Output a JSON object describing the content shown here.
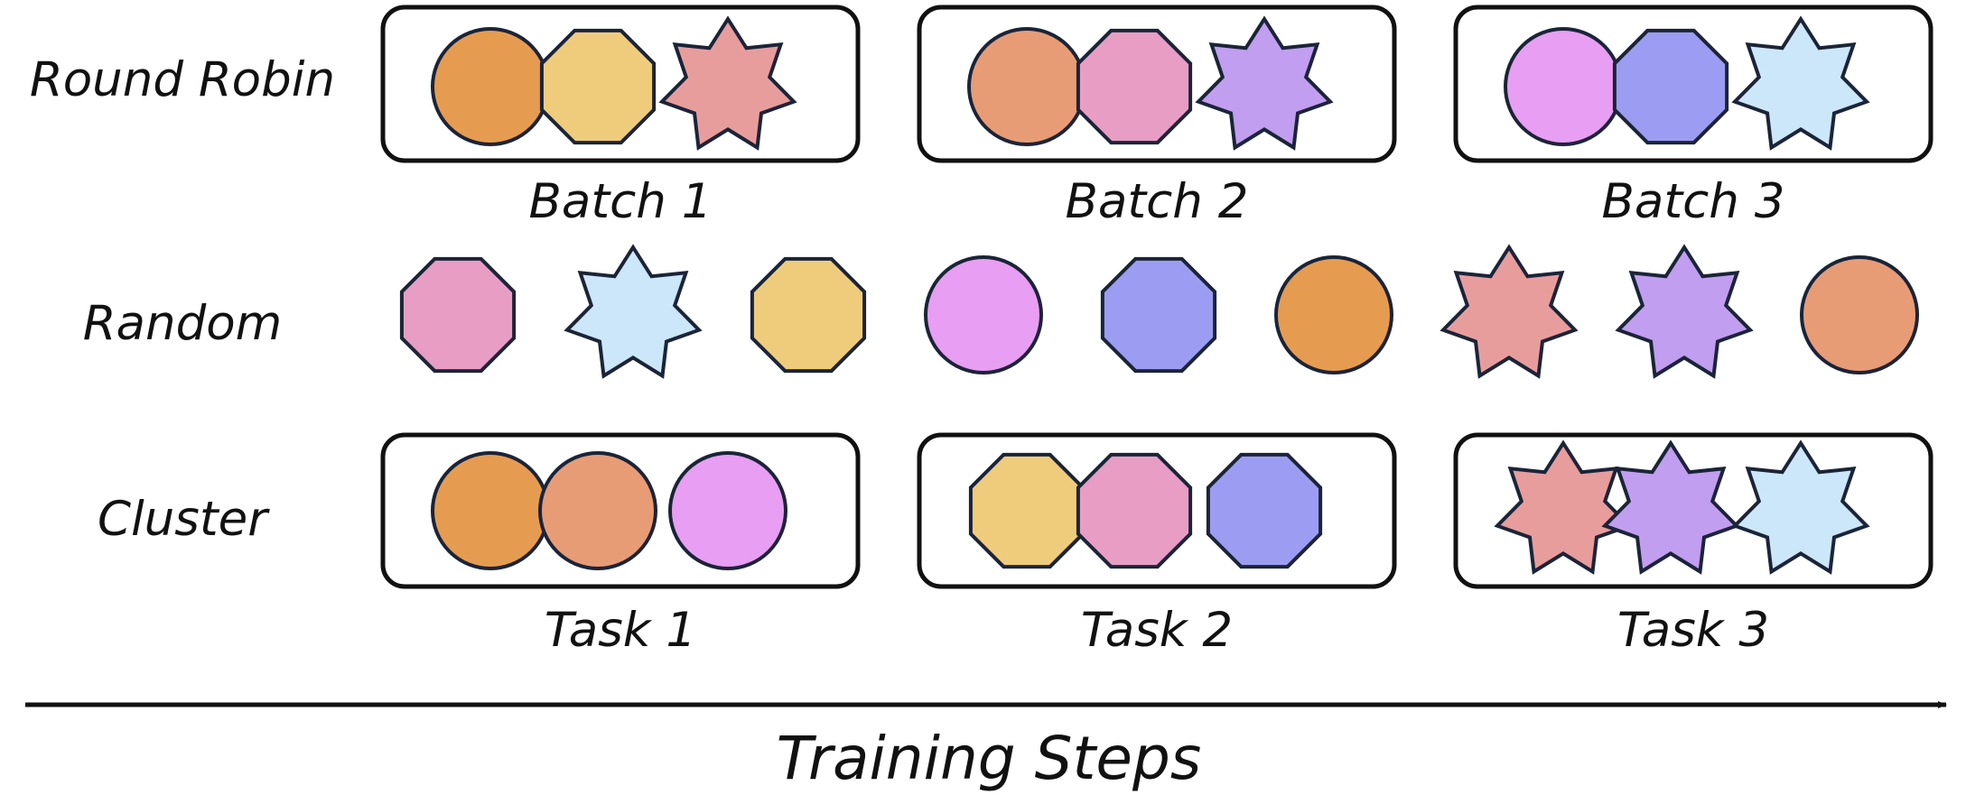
{
  "colors": {
    "orange": "#e69c50",
    "salmon": "#e89c76",
    "yellow": "#efcc7c",
    "pink": "#e89dc4",
    "rose": "#e89d9d",
    "purple": "#c19ef0",
    "violet": "#e89ef2",
    "blue": "#9c9df2",
    "light_blue": "#cce7f9",
    "outline": "#1b2438",
    "text": "#111111"
  },
  "rows": [
    {
      "label": "Round Robin",
      "groups": [
        {
          "label": "Batch 1",
          "items": [
            {
              "shape": "circle",
              "color": "orange"
            },
            {
              "shape": "octagon",
              "color": "yellow"
            },
            {
              "shape": "star",
              "color": "rose"
            }
          ]
        },
        {
          "label": "Batch 2",
          "items": [
            {
              "shape": "circle",
              "color": "salmon"
            },
            {
              "shape": "octagon",
              "color": "pink"
            },
            {
              "shape": "star",
              "color": "purple"
            }
          ]
        },
        {
          "label": "Batch 3",
          "items": [
            {
              "shape": "circle",
              "color": "violet"
            },
            {
              "shape": "octagon",
              "color": "blue"
            },
            {
              "shape": "star",
              "color": "light_blue"
            }
          ]
        }
      ]
    },
    {
      "label": "Random",
      "items": [
        {
          "shape": "octagon",
          "color": "pink"
        },
        {
          "shape": "star",
          "color": "light_blue"
        },
        {
          "shape": "octagon",
          "color": "yellow"
        },
        {
          "shape": "circle",
          "color": "violet"
        },
        {
          "shape": "octagon",
          "color": "blue"
        },
        {
          "shape": "circle",
          "color": "orange"
        },
        {
          "shape": "star",
          "color": "rose"
        },
        {
          "shape": "star",
          "color": "purple"
        },
        {
          "shape": "circle",
          "color": "salmon"
        }
      ]
    },
    {
      "label": "Cluster",
      "groups": [
        {
          "label": "Task 1",
          "items": [
            {
              "shape": "circle",
              "color": "orange"
            },
            {
              "shape": "circle",
              "color": "salmon"
            },
            {
              "shape": "circle",
              "color": "violet"
            }
          ]
        },
        {
          "label": "Task 2",
          "items": [
            {
              "shape": "octagon",
              "color": "yellow"
            },
            {
              "shape": "octagon",
              "color": "pink"
            },
            {
              "shape": "octagon",
              "color": "blue"
            }
          ]
        },
        {
          "label": "Task 3",
          "items": [
            {
              "shape": "star",
              "color": "rose"
            },
            {
              "shape": "star",
              "color": "purple"
            },
            {
              "shape": "star",
              "color": "light_blue"
            }
          ]
        }
      ]
    }
  ],
  "axis": {
    "label": "Training Steps"
  }
}
